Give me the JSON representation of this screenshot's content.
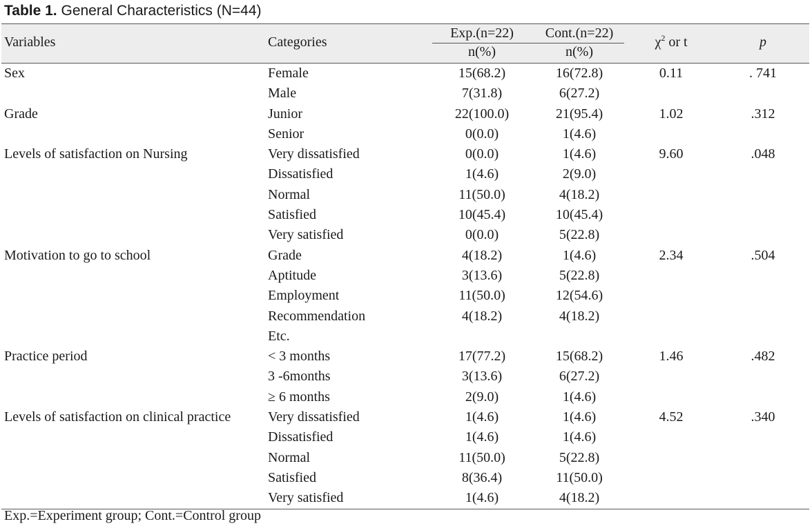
{
  "caption": {
    "label": "Table 1.",
    "title": "General Characteristics (N=44)"
  },
  "header": {
    "variables": "Variables",
    "categories": "Categories",
    "exp_group": "Exp.(n=22)",
    "cont_group": "Cont.(n=22)",
    "exp_sub": "n(%)",
    "cont_sub": "n(%)",
    "chi_symbol": "χ",
    "chi_sup": "2",
    "chi_rest": " or t",
    "p": "p"
  },
  "rows": [
    {
      "variable": "Sex",
      "category": "Female",
      "exp": "15(68.2)",
      "cont": "16(72.8)",
      "chi": "0.11",
      "p": ". 741"
    },
    {
      "variable": "",
      "category": "Male",
      "exp": "7(31.8)",
      "cont": "6(27.2)",
      "chi": "",
      "p": ""
    },
    {
      "variable": "Grade",
      "category": "Junior",
      "exp": "22(100.0)",
      "cont": "21(95.4)",
      "chi": "1.02",
      "p": ".312"
    },
    {
      "variable": "",
      "category": "Senior",
      "exp": "0(0.0)",
      "cont": "1(4.6)",
      "chi": "",
      "p": ""
    },
    {
      "variable": "Levels of satisfaction on Nursing",
      "category": "Very dissatisfied",
      "exp": "0(0.0)",
      "cont": "1(4.6)",
      "chi": "9.60",
      "p": ".048"
    },
    {
      "variable": "",
      "category": "Dissatisfied",
      "exp": "1(4.6)",
      "cont": "2(9.0)",
      "chi": "",
      "p": ""
    },
    {
      "variable": "",
      "category": "Normal",
      "exp": "11(50.0)",
      "cont": "4(18.2)",
      "chi": "",
      "p": ""
    },
    {
      "variable": "",
      "category": "Satisfied",
      "exp": "10(45.4)",
      "cont": "10(45.4)",
      "chi": "",
      "p": ""
    },
    {
      "variable": "",
      "category": "Very satisfied",
      "exp": "0(0.0)",
      "cont": "5(22.8)",
      "chi": "",
      "p": ""
    },
    {
      "variable": "Motivation to go to school",
      "category": "Grade",
      "exp": "4(18.2)",
      "cont": "1(4.6)",
      "chi": "2.34",
      "p": ".504"
    },
    {
      "variable": "",
      "category": "Aptitude",
      "exp": "3(13.6)",
      "cont": "5(22.8)",
      "chi": "",
      "p": ""
    },
    {
      "variable": "",
      "category": "Employment",
      "exp": "11(50.0)",
      "cont": "12(54.6)",
      "chi": "",
      "p": ""
    },
    {
      "variable": "",
      "category": "Recommendation",
      "exp": "4(18.2)",
      "cont": "4(18.2)",
      "chi": "",
      "p": ""
    },
    {
      "variable": "",
      "category": "Etc.",
      "exp": "",
      "cont": "",
      "chi": "",
      "p": ""
    },
    {
      "variable": "Practice period",
      "category": "< 3 months",
      "exp": "17(77.2)",
      "cont": "15(68.2)",
      "chi": "1.46",
      "p": ".482"
    },
    {
      "variable": "",
      "category": "3 -6months",
      "exp": "3(13.6)",
      "cont": "6(27.2)",
      "chi": "",
      "p": ""
    },
    {
      "variable": "",
      "category": "≥ 6 months",
      "exp": "2(9.0)",
      "cont": "1(4.6)",
      "chi": "",
      "p": ""
    },
    {
      "variable": "Levels of satisfaction on clinical practice",
      "category": "Very dissatisfied",
      "exp": "1(4.6)",
      "cont": "1(4.6)",
      "chi": "4.52",
      "p": ".340"
    },
    {
      "variable": "",
      "category": "Dissatisfied",
      "exp": "1(4.6)",
      "cont": "1(4.6)",
      "chi": "",
      "p": ""
    },
    {
      "variable": "",
      "category": "Normal",
      "exp": "11(50.0)",
      "cont": "5(22.8)",
      "chi": "",
      "p": ""
    },
    {
      "variable": "",
      "category": "Satisfied",
      "exp": "8(36.4)",
      "cont": "11(50.0)",
      "chi": "",
      "p": ""
    },
    {
      "variable": "",
      "category": "Very satisfied",
      "exp": "1(4.6)",
      "cont": "4(18.2)",
      "chi": "",
      "p": ""
    }
  ],
  "footnote": "Exp.=Experiment group; Cont.=Control group"
}
